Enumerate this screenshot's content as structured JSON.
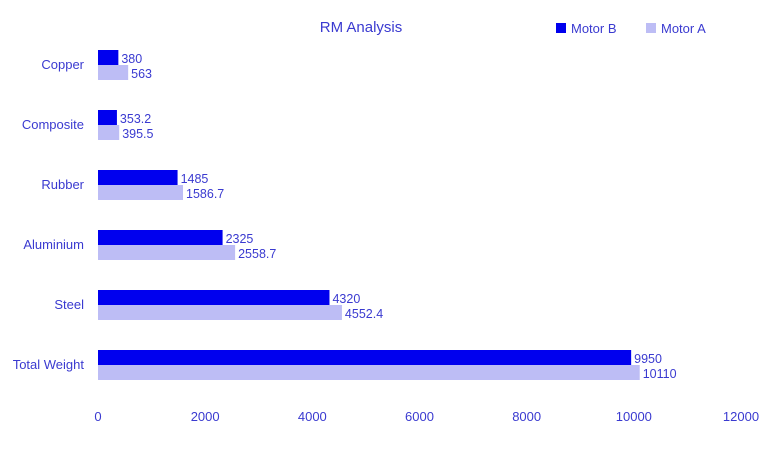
{
  "chart_data": {
    "type": "bar",
    "orientation": "horizontal",
    "title": "RM Analysis",
    "xlabel": "",
    "ylabel": "",
    "categories": [
      "Copper",
      "Composite",
      "Rubber",
      "Aluminium",
      "Steel",
      "Total Weight"
    ],
    "series": [
      {
        "name": "Motor B",
        "values": [
          380,
          353.2,
          1485,
          2325,
          4320,
          9950
        ],
        "labels": [
          "380",
          "353.2",
          "1485",
          "2325",
          "4320",
          "9950"
        ],
        "color": "#0000ee"
      },
      {
        "name": "Motor A",
        "values": [
          563,
          395.5,
          1586.7,
          2558.7,
          4552.4,
          10110
        ],
        "labels": [
          "563",
          "395.5",
          "1586.7",
          "2558.7",
          "4552.4",
          "10110"
        ],
        "color": "#bdbdf5"
      }
    ],
    "xlim": [
      0,
      12000
    ],
    "xticks": [
      "0",
      "2000",
      "4000",
      "6000",
      "8000",
      "10000",
      "12000"
    ],
    "grid": false,
    "legend_position": "top-right",
    "text_color": "#3a3ad0"
  }
}
